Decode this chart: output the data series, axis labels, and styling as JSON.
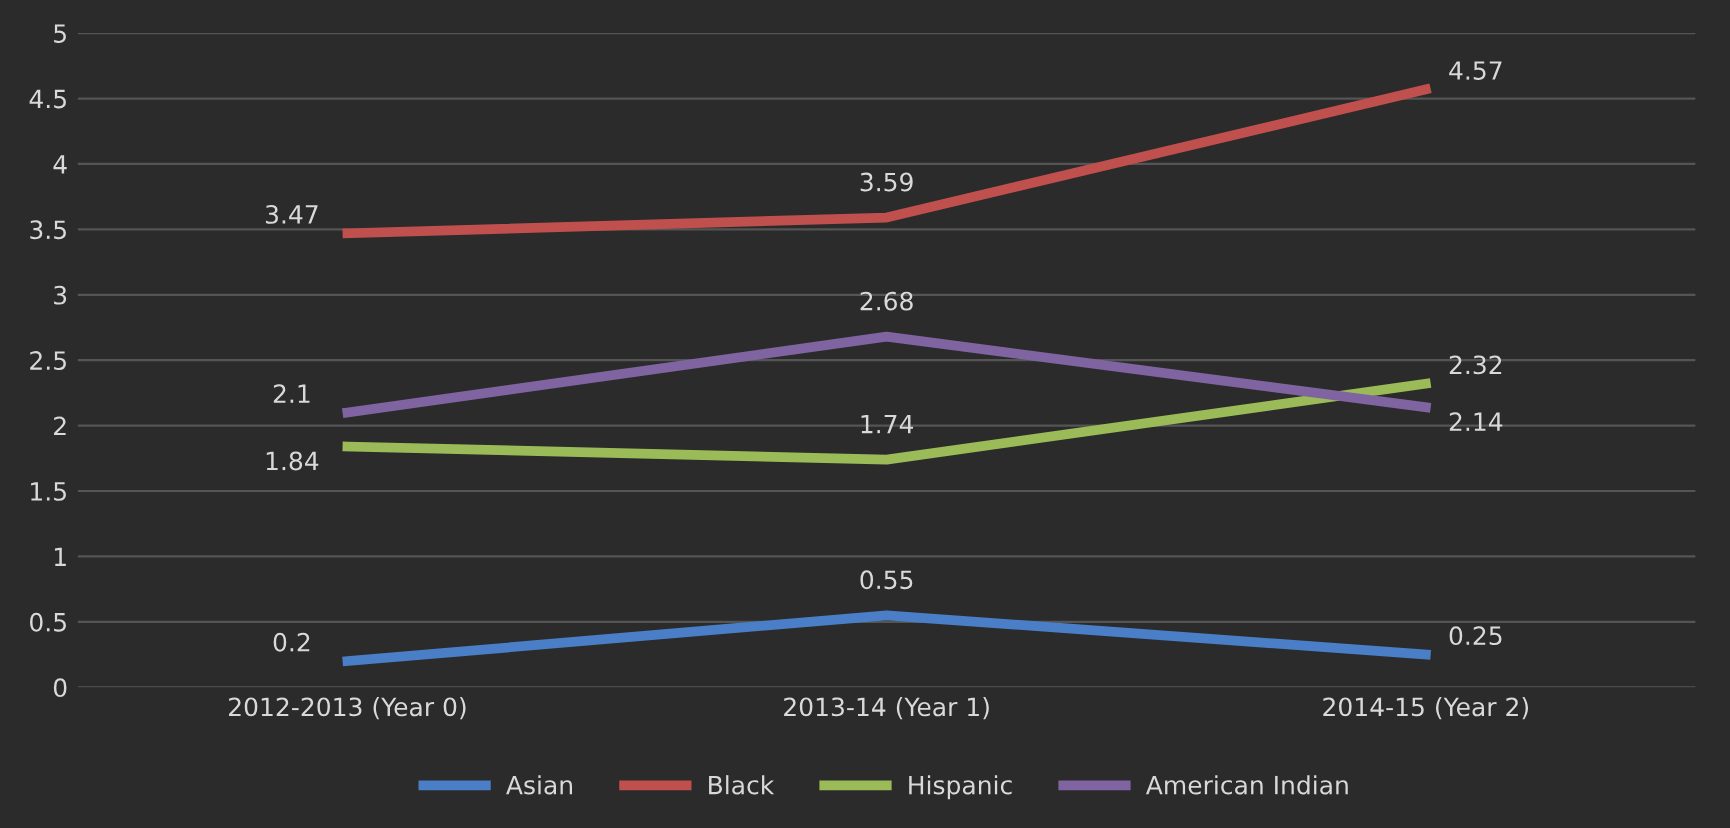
{
  "chart_data": {
    "type": "line",
    "categories": [
      "2012-2013 (Year 0)",
      "2013-14 (Year 1)",
      "2014-15 (Year 2)"
    ],
    "series": [
      {
        "name": "Asian",
        "color": "#4a7ec6",
        "values": [
          0.2,
          0.55,
          0.25
        ]
      },
      {
        "name": "Black",
        "color": "#c0504d",
        "values": [
          3.47,
          3.59,
          4.57
        ]
      },
      {
        "name": "Hispanic",
        "color": "#9bbb59",
        "values": [
          1.84,
          1.74,
          2.32
        ]
      },
      {
        "name": "American Indian",
        "color": "#8064a2",
        "values": [
          2.1,
          2.68,
          2.14
        ]
      }
    ],
    "ylim": [
      0,
      5
    ],
    "yticks": [
      0,
      0.5,
      1,
      1.5,
      2,
      2.5,
      3,
      3.5,
      4,
      4.5,
      5
    ],
    "grid": "y",
    "legend": "bottom",
    "data_labels": true,
    "marker": "none",
    "line_style": "solid"
  }
}
